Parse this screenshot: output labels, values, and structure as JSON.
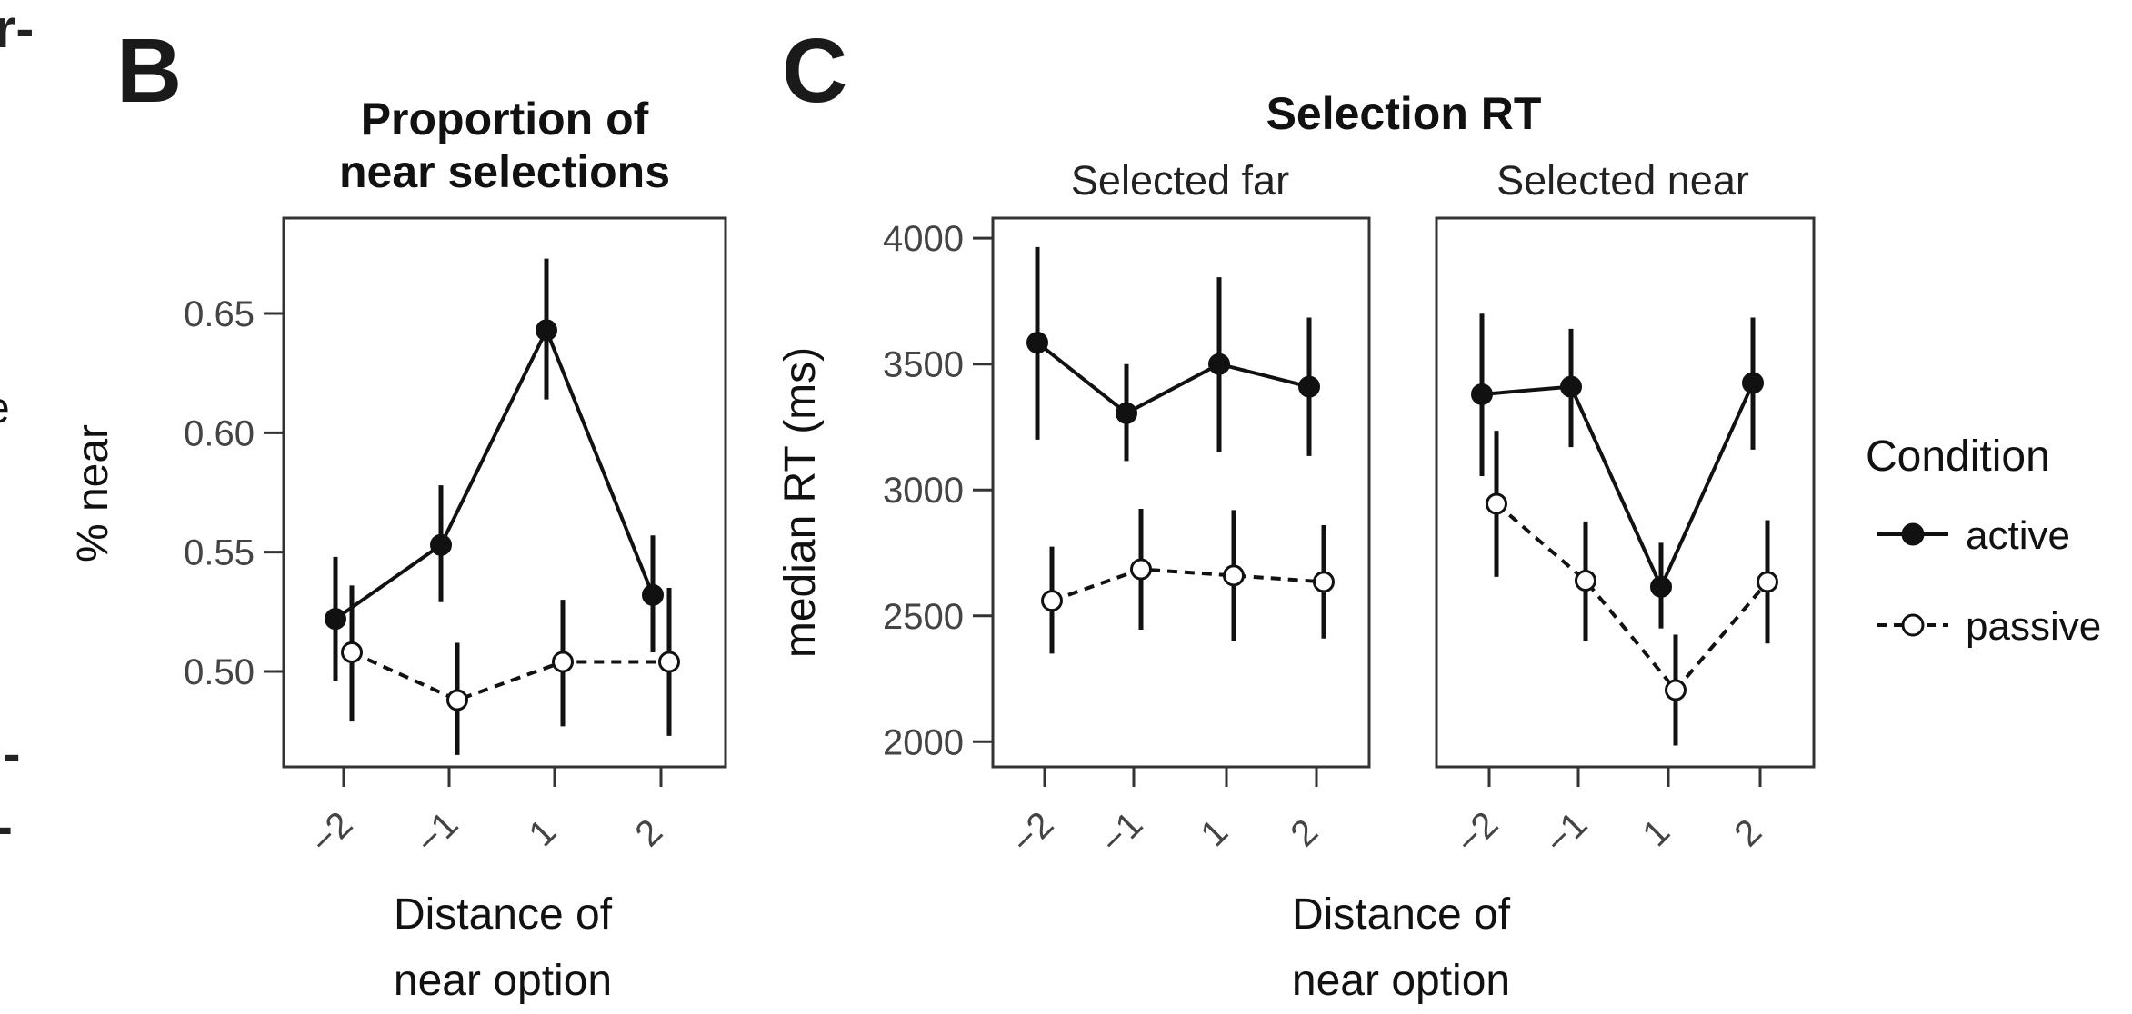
{
  "panel_labels": {
    "b": "B",
    "c": "C"
  },
  "cut_fragments": [
    "r-",
    "e",
    "l-",
    "-"
  ],
  "legend": {
    "title": "Condition",
    "items": [
      {
        "label": "active",
        "style": "solid-filled"
      },
      {
        "label": "passive",
        "style": "dashed-open"
      }
    ]
  },
  "colors": {
    "line": "#111111",
    "open_fill": "#ffffff"
  },
  "chart_data": [
    {
      "type": "line",
      "panel": "B",
      "title_lines": [
        "Proportion of",
        "near selections"
      ],
      "xlabel_lines": [
        "Distance of",
        "near option"
      ],
      "ylabel": "% near",
      "categories": [
        "-2",
        "-1",
        "1",
        "2"
      ],
      "ylim": [
        0.46,
        0.69
      ],
      "yticks": [
        0.5,
        0.55,
        0.6,
        0.65
      ],
      "ytick_labels": [
        "0.50",
        "0.55",
        "0.60",
        "0.65"
      ],
      "series": [
        {
          "name": "active",
          "values": [
            0.522,
            0.553,
            0.643,
            0.532
          ],
          "lower": [
            0.496,
            0.529,
            0.614,
            0.508
          ],
          "upper": [
            0.548,
            0.578,
            0.673,
            0.557
          ]
        },
        {
          "name": "passive",
          "values": [
            0.508,
            0.488,
            0.504,
            0.504
          ],
          "lower": [
            0.479,
            0.465,
            0.477,
            0.473
          ],
          "upper": [
            0.536,
            0.512,
            0.53,
            0.535
          ]
        }
      ]
    },
    {
      "type": "line",
      "panel": "C",
      "title": "Selection RT",
      "xlabel_lines": [
        "Distance of",
        "near option"
      ],
      "ylabel": "median RT (ms)",
      "ylim": [
        1900,
        4080
      ],
      "yticks": [
        2000,
        2500,
        3000,
        3500,
        4000
      ],
      "ytick_labels": [
        "2000",
        "2500",
        "3000",
        "3500",
        "4000"
      ],
      "facets": [
        {
          "label": "Selected far",
          "categories": [
            "-2",
            "-1",
            "1",
            "2"
          ],
          "series": [
            {
              "name": "active",
              "values": [
                3585,
                3305,
                3500,
                3410
              ],
              "lower": [
                3200,
                3115,
                3150,
                3135
              ],
              "upper": [
                3965,
                3500,
                3845,
                3685
              ]
            },
            {
              "name": "passive",
              "values": [
                2560,
                2685,
                2660,
                2635
              ],
              "lower": [
                2350,
                2445,
                2400,
                2410
              ],
              "upper": [
                2775,
                2925,
                2920,
                2860
              ]
            }
          ]
        },
        {
          "label": "Selected near",
          "categories": [
            "-2",
            "-1",
            "1",
            "2"
          ],
          "series": [
            {
              "name": "active",
              "values": [
                3380,
                3410,
                2615,
                3425
              ],
              "lower": [
                3055,
                3170,
                2450,
                3160
              ],
              "upper": [
                3700,
                3640,
                2790,
                3685
              ]
            },
            {
              "name": "passive",
              "values": [
                2945,
                2640,
                2205,
                2635
              ],
              "lower": [
                2655,
                2400,
                1985,
                2390
              ],
              "upper": [
                3235,
                2875,
                2425,
                2880
              ]
            }
          ]
        }
      ]
    }
  ]
}
